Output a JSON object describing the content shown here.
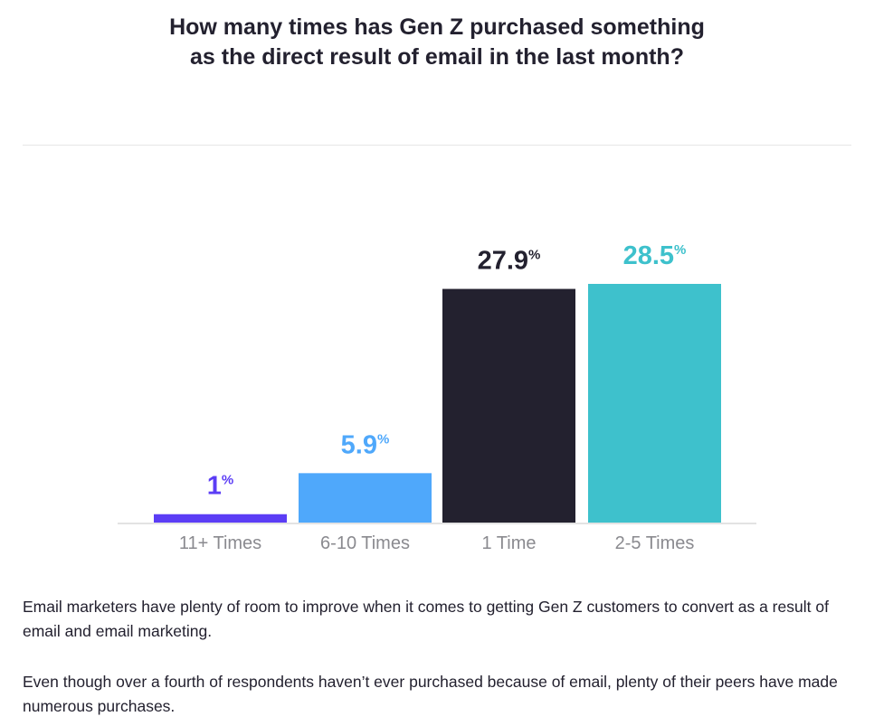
{
  "chart_data": {
    "type": "bar",
    "title": "How many times has Gen Z purchased something as the direct result of email in the last month?",
    "title_lines": [
      "How many times has Gen Z purchased something",
      "as the direct result of email in the last month?"
    ],
    "categories": [
      "11+ Times",
      "6-10 Times",
      "1 Time",
      "2-5 Times"
    ],
    "values": [
      1,
      5.9,
      27.9,
      28.5
    ],
    "value_labels": [
      "1",
      "5.9",
      "27.9",
      "28.5"
    ],
    "unit": "%",
    "colors": [
      "#5b3df5",
      "#4fa8fb",
      "#23212f",
      "#3ec1cc"
    ],
    "xlabel": "",
    "ylabel": "",
    "ylim": [
      0,
      28.5
    ],
    "grid": false
  },
  "paragraphs": [
    "Email marketers have plenty of room to improve when it comes to getting Gen Z customers to convert as a result of email and email marketing.",
    "Even though over a fourth of respondents haven’t ever purchased because of email, plenty of their peers have made numerous purchases."
  ]
}
